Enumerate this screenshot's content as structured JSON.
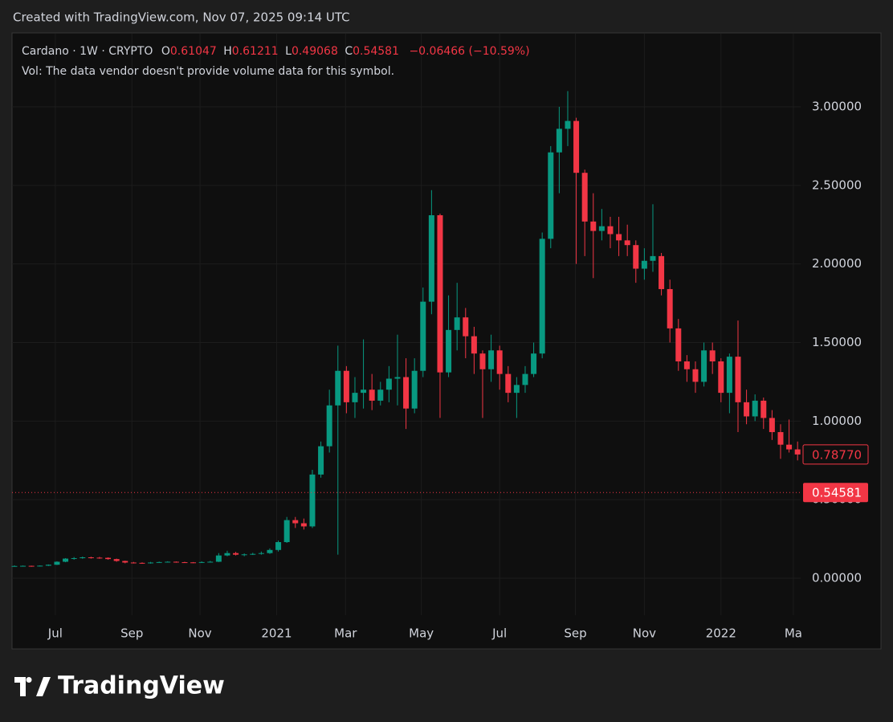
{
  "page_header": "Created with TradingView.com, Nov 07, 2025 09:14 UTC",
  "brand": "TradingView",
  "chart_data": {
    "type": "candlestick",
    "title": "Cardano · 1W · CRYPTO",
    "ohlc_labels": [
      "O",
      "H",
      "L",
      "C"
    ],
    "ohlc_values": [
      0.61047,
      0.61211,
      0.49068,
      0.54581
    ],
    "change": "−0.06466 (−10.59%)",
    "subtitle": "Vol: The data vendor doesn't provide volume data for this symbol.",
    "up_color": "#089981",
    "down_color": "#f23645",
    "grid": true,
    "xlim": [
      -0.28,
      92.36
    ],
    "xticks": [
      {
        "value": 4.8,
        "label": "Jul"
      },
      {
        "value": 13.8,
        "label": "Sep"
      },
      {
        "value": 21.8,
        "label": "Nov"
      },
      {
        "value": 30.8,
        "label": "2021"
      },
      {
        "value": 38.9,
        "label": "Mar"
      },
      {
        "value": 47.8,
        "label": "May"
      },
      {
        "value": 57,
        "label": "Jul"
      },
      {
        "value": 65.9,
        "label": "Sep"
      },
      {
        "value": 74,
        "label": "Nov"
      },
      {
        "value": 83,
        "label": "2022"
      },
      {
        "value": 91.5,
        "label": "Ma"
      }
    ],
    "ylim": [
      -0.235,
      3.465
    ],
    "yticks": [
      {
        "value": 0,
        "label": "0.00000"
      },
      {
        "value": 0.5,
        "label": "0.50000"
      },
      {
        "value": 1,
        "label": "1.00000"
      },
      {
        "value": 1.5,
        "label": "1.50000"
      },
      {
        "value": 2,
        "label": "2.00000"
      },
      {
        "value": 2.5,
        "label": "2.50000"
      },
      {
        "value": 3,
        "label": "3.00000"
      }
    ],
    "last_bar_close": {
      "value": 0.7877,
      "label": "0.78770"
    },
    "current_price": {
      "value": 0.54581,
      "label": "0.54581"
    },
    "open": [
      0.076,
      0.078,
      0.079,
      0.076,
      0.08,
      0.086,
      0.105,
      0.125,
      0.128,
      0.133,
      0.131,
      0.13,
      0.122,
      0.11,
      0.1,
      0.098,
      0.095,
      0.1,
      0.103,
      0.105,
      0.102,
      0.101,
      0.099,
      0.103,
      0.105,
      0.145,
      0.16,
      0.15,
      0.152,
      0.155,
      0.16,
      0.18,
      0.23,
      0.37,
      0.35,
      0.33,
      0.66,
      0.84,
      1.1,
      1.32,
      1.12,
      1.18,
      1.2,
      1.13,
      1.2,
      1.27,
      1.28,
      1.08,
      1.32,
      1.76,
      2.31,
      1.31,
      1.58,
      1.66,
      1.54,
      1.43,
      1.33,
      1.45,
      1.3,
      1.18,
      1.23,
      1.3,
      1.43,
      2.16,
      2.71,
      2.86,
      2.91,
      2.58,
      2.27,
      2.21,
      2.24,
      2.19,
      2.15,
      2.12,
      1.97,
      2.02,
      2.05,
      1.84,
      1.59,
      1.38,
      1.33,
      1.25,
      1.45,
      1.38,
      1.18,
      1.41,
      1.12,
      1.03,
      1.13,
      1.02,
      0.93,
      0.85,
      0.82
    ],
    "high": [
      0.082,
      0.081,
      0.08,
      0.082,
      0.088,
      0.108,
      0.128,
      0.135,
      0.138,
      0.137,
      0.136,
      0.133,
      0.125,
      0.112,
      0.104,
      0.101,
      0.104,
      0.106,
      0.108,
      0.107,
      0.105,
      0.103,
      0.108,
      0.11,
      0.16,
      0.175,
      0.168,
      0.158,
      0.162,
      0.17,
      0.19,
      0.24,
      0.39,
      0.39,
      0.38,
      0.69,
      0.87,
      1.2,
      1.48,
      1.35,
      1.28,
      1.52,
      1.3,
      1.25,
      1.35,
      1.55,
      1.4,
      1.4,
      1.85,
      2.47,
      2.32,
      1.8,
      1.88,
      1.72,
      1.6,
      1.45,
      1.55,
      1.48,
      1.35,
      1.28,
      1.35,
      1.5,
      2.2,
      2.75,
      3.0,
      3.1,
      2.93,
      2.6,
      2.45,
      2.35,
      2.3,
      2.3,
      2.25,
      2.15,
      2.1,
      2.38,
      2.07,
      1.9,
      1.65,
      1.42,
      1.38,
      1.5,
      1.5,
      1.4,
      1.43,
      1.64,
      1.2,
      1.17,
      1.15,
      1.07,
      0.98,
      1.01,
      0.87
    ],
    "low": [
      0.074,
      0.075,
      0.073,
      0.075,
      0.078,
      0.084,
      0.102,
      0.118,
      0.124,
      0.125,
      0.124,
      0.118,
      0.105,
      0.095,
      0.094,
      0.092,
      0.093,
      0.098,
      0.1,
      0.099,
      0.098,
      0.096,
      0.097,
      0.101,
      0.103,
      0.14,
      0.145,
      0.14,
      0.148,
      0.15,
      0.155,
      0.17,
      0.225,
      0.32,
      0.31,
      0.32,
      0.64,
      0.8,
      0.15,
      1.05,
      1.02,
      1.08,
      1.07,
      1.1,
      1.12,
      1.1,
      0.95,
      1.05,
      1.28,
      1.68,
      1.02,
      1.28,
      1.45,
      1.4,
      1.3,
      1.02,
      1.25,
      1.2,
      1.12,
      1.02,
      1.18,
      1.28,
      1.4,
      2.1,
      2.45,
      2.75,
      2.0,
      2.05,
      1.91,
      2.15,
      2.1,
      2.05,
      2.05,
      1.88,
      1.9,
      1.95,
      1.8,
      1.5,
      1.32,
      1.25,
      1.18,
      1.22,
      1.3,
      1.12,
      1.05,
      0.93,
      0.98,
      1.0,
      0.95,
      0.88,
      0.76,
      0.8,
      0.75
    ],
    "close": [
      0.078,
      0.079,
      0.076,
      0.08,
      0.086,
      0.105,
      0.125,
      0.128,
      0.133,
      0.131,
      0.13,
      0.122,
      0.11,
      0.1,
      0.098,
      0.095,
      0.1,
      0.103,
      0.105,
      0.102,
      0.101,
      0.099,
      0.103,
      0.105,
      0.145,
      0.16,
      0.15,
      0.152,
      0.155,
      0.16,
      0.18,
      0.23,
      0.37,
      0.35,
      0.33,
      0.66,
      0.84,
      1.1,
      1.32,
      1.12,
      1.18,
      1.2,
      1.13,
      1.2,
      1.27,
      1.28,
      1.08,
      1.32,
      1.76,
      2.31,
      1.31,
      1.58,
      1.66,
      1.54,
      1.43,
      1.33,
      1.45,
      1.3,
      1.18,
      1.23,
      1.3,
      1.43,
      2.16,
      2.71,
      2.86,
      2.91,
      2.58,
      2.27,
      2.21,
      2.24,
      2.19,
      2.15,
      2.12,
      1.97,
      2.02,
      2.05,
      1.84,
      1.59,
      1.38,
      1.33,
      1.25,
      1.45,
      1.38,
      1.18,
      1.41,
      1.12,
      1.03,
      1.13,
      1.02,
      0.93,
      0.85,
      0.82,
      0.7877
    ]
  }
}
